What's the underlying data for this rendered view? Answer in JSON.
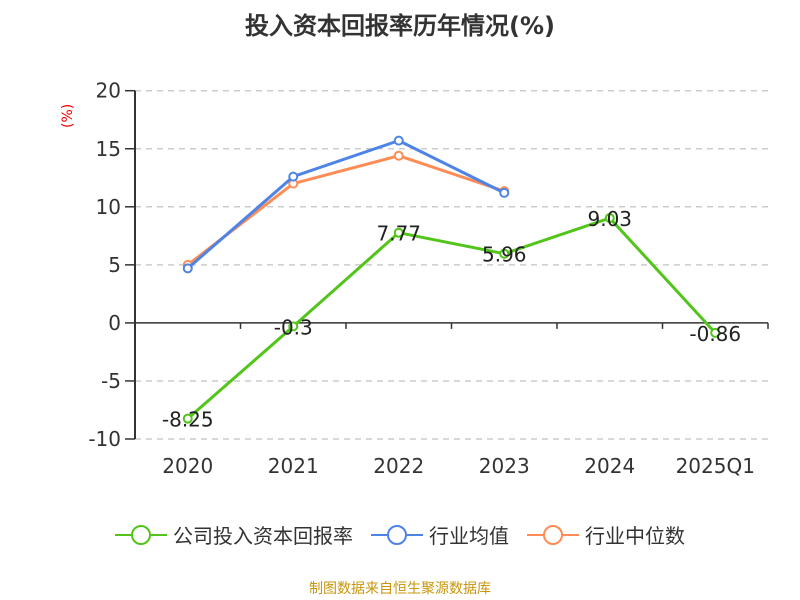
{
  "chart_data": {
    "type": "line",
    "title": "投入资本回报率历年情况(%)",
    "ylabel": "(%)",
    "xlabel": "",
    "categories": [
      "2020",
      "2021",
      "2022",
      "2023",
      "2024",
      "2025Q1"
    ],
    "ylim": [
      -10,
      20
    ],
    "yticks": [
      "-10",
      "-5",
      "0",
      "5",
      "10",
      "15",
      "20"
    ],
    "grid": true,
    "legend_position": "bottom",
    "series": [
      {
        "name": "公司投入资本回报率",
        "color": "#52c41a",
        "values": [
          -8.25,
          -0.3,
          7.77,
          5.96,
          9.03,
          -0.86
        ],
        "labels": [
          "-8.25",
          "-0.3",
          "7.77",
          "5.96",
          "9.03",
          "-0.86"
        ]
      },
      {
        "name": "行业均值",
        "color": "#4e84e6",
        "values": [
          4.7,
          12.6,
          15.7,
          11.2,
          null,
          null
        ]
      },
      {
        "name": "行业中位数",
        "color": "#ff8c55",
        "values": [
          5.0,
          12.0,
          14.4,
          11.35,
          null,
          null
        ]
      }
    ]
  },
  "source": "制图数据来自恒生聚源数据库"
}
